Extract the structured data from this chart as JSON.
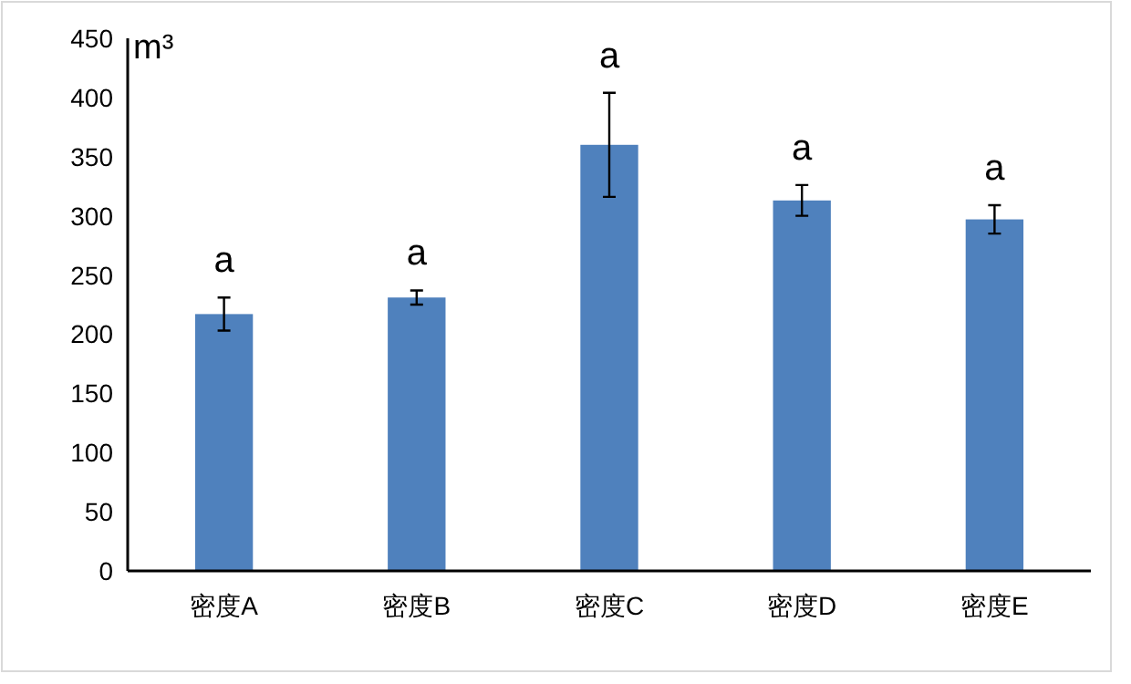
{
  "chart_data": {
    "type": "bar",
    "ylabel": "m³",
    "categories": [
      "密度A",
      "密度B",
      "密度C",
      "密度D",
      "密度E"
    ],
    "series": [
      {
        "color": "#4f81bd",
        "values": [
          217,
          231,
          360,
          313,
          297
        ],
        "errors": [
          14,
          6,
          44,
          13,
          12
        ]
      }
    ],
    "ylim": [
      0,
      450
    ],
    "yticks": [
      0,
      50,
      100,
      150,
      200,
      250,
      300,
      350,
      400,
      450
    ],
    "grid": false,
    "annotations": [
      "a",
      "a",
      "a",
      "a",
      "a"
    ]
  }
}
